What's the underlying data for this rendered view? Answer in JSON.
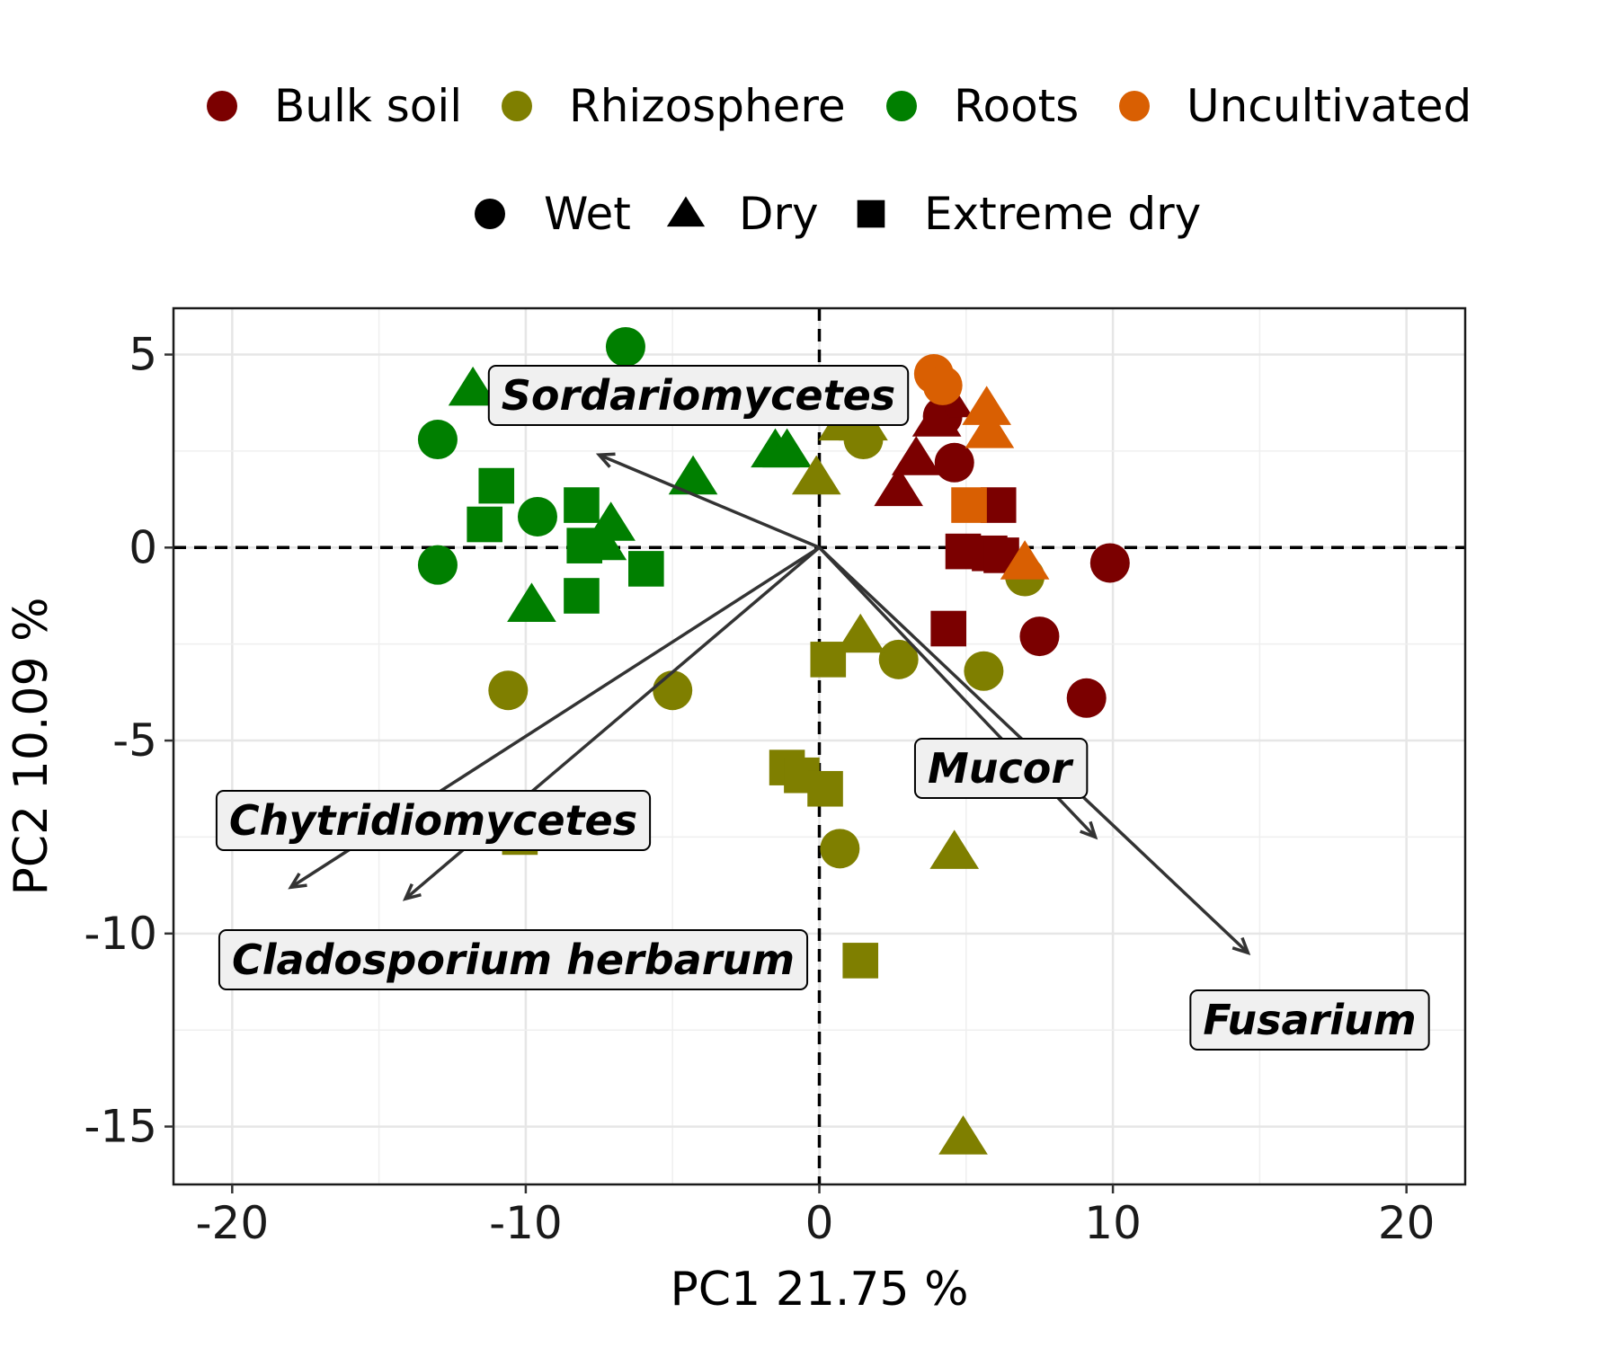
{
  "chart_data": {
    "type": "scatter",
    "xlabel": "PC1 21.75 %",
    "ylabel": "PC2 10.09 %",
    "xlim": [
      -22,
      22
    ],
    "ylim": [
      -16.5,
      6.2
    ],
    "xticks": [
      -20,
      -10,
      0,
      10,
      20
    ],
    "yticks": [
      5,
      0,
      -5,
      -10,
      -15
    ],
    "grid": true,
    "reference_lines": {
      "x": 0,
      "y": 0,
      "style": "dashed"
    },
    "legend": {
      "placement": "top",
      "groups": [
        {
          "name": "Bulk soil",
          "color": "#7b0000"
        },
        {
          "name": "Rhizosphere",
          "color": "#7f7f00"
        },
        {
          "name": "Roots",
          "color": "#007f00"
        },
        {
          "name": "Uncultivated",
          "color": "#d95f02"
        }
      ],
      "conditions": [
        {
          "name": "Wet",
          "shape": "circle"
        },
        {
          "name": "Dry",
          "shape": "triangle"
        },
        {
          "name": "Extreme dry",
          "shape": "square"
        }
      ]
    },
    "points": [
      {
        "group": "Roots",
        "condition": "Wet",
        "x": -6.6,
        "y": 5.2
      },
      {
        "group": "Roots",
        "condition": "Wet",
        "x": -13.0,
        "y": 2.8
      },
      {
        "group": "Roots",
        "condition": "Wet",
        "x": -9.6,
        "y": 0.8
      },
      {
        "group": "Roots",
        "condition": "Wet",
        "x": -13.0,
        "y": -0.45
      },
      {
        "group": "Roots",
        "condition": "Dry",
        "x": -11.8,
        "y": 4.1
      },
      {
        "group": "Roots",
        "condition": "Dry",
        "x": -4.9,
        "y": 3.7
      },
      {
        "group": "Roots",
        "condition": "Dry",
        "x": -4.3,
        "y": 1.8
      },
      {
        "group": "Roots",
        "condition": "Dry",
        "x": -1.5,
        "y": 2.5
      },
      {
        "group": "Roots",
        "condition": "Dry",
        "x": -1.1,
        "y": 2.5
      },
      {
        "group": "Roots",
        "condition": "Dry",
        "x": -7.1,
        "y": 0.6
      },
      {
        "group": "Roots",
        "condition": "Dry",
        "x": -7.4,
        "y": 0.1
      },
      {
        "group": "Roots",
        "condition": "Dry",
        "x": -9.8,
        "y": -1.5
      },
      {
        "group": "Roots",
        "condition": "Extreme dry",
        "x": -11.0,
        "y": 1.6
      },
      {
        "group": "Roots",
        "condition": "Extreme dry",
        "x": -11.4,
        "y": 0.6
      },
      {
        "group": "Roots",
        "condition": "Extreme dry",
        "x": -8.1,
        "y": 1.1
      },
      {
        "group": "Roots",
        "condition": "Extreme dry",
        "x": -8.0,
        "y": 0.05
      },
      {
        "group": "Roots",
        "condition": "Extreme dry",
        "x": -5.9,
        "y": -0.55
      },
      {
        "group": "Roots",
        "condition": "Extreme dry",
        "x": -8.1,
        "y": -1.25
      },
      {
        "group": "Rhizosphere",
        "condition": "Wet",
        "x": -10.6,
        "y": -3.7
      },
      {
        "group": "Rhizosphere",
        "condition": "Wet",
        "x": -5.0,
        "y": -3.7
      },
      {
        "group": "Rhizosphere",
        "condition": "Wet",
        "x": 1.5,
        "y": 2.8
      },
      {
        "group": "Rhizosphere",
        "condition": "Wet",
        "x": 2.7,
        "y": -2.9
      },
      {
        "group": "Rhizosphere",
        "condition": "Wet",
        "x": 5.6,
        "y": -3.2
      },
      {
        "group": "Rhizosphere",
        "condition": "Wet",
        "x": 7.0,
        "y": -0.75
      },
      {
        "group": "Rhizosphere",
        "condition": "Wet",
        "x": 0.7,
        "y": -7.8
      },
      {
        "group": "Rhizosphere",
        "condition": "Dry",
        "x": 0.8,
        "y": 3.2
      },
      {
        "group": "Rhizosphere",
        "condition": "Dry",
        "x": 1.5,
        "y": 3.2
      },
      {
        "group": "Rhizosphere",
        "condition": "Dry",
        "x": -0.1,
        "y": 1.8
      },
      {
        "group": "Rhizosphere",
        "condition": "Dry",
        "x": 1.4,
        "y": -2.3
      },
      {
        "group": "Rhizosphere",
        "condition": "Dry",
        "x": 4.6,
        "y": -7.9
      },
      {
        "group": "Rhizosphere",
        "condition": "Dry",
        "x": 4.9,
        "y": -15.3
      },
      {
        "group": "Rhizosphere",
        "condition": "Extreme dry",
        "x": 0.3,
        "y": -2.9
      },
      {
        "group": "Rhizosphere",
        "condition": "Extreme dry",
        "x": -1.1,
        "y": -5.7
      },
      {
        "group": "Rhizosphere",
        "condition": "Extreme dry",
        "x": -0.6,
        "y": -5.9
      },
      {
        "group": "Rhizosphere",
        "condition": "Extreme dry",
        "x": 0.2,
        "y": -6.25
      },
      {
        "group": "Rhizosphere",
        "condition": "Extreme dry",
        "x": -10.2,
        "y": -7.5
      },
      {
        "group": "Rhizosphere",
        "condition": "Extreme dry",
        "x": 1.4,
        "y": -10.7
      },
      {
        "group": "Bulk soil",
        "condition": "Wet",
        "x": 9.9,
        "y": -0.4
      },
      {
        "group": "Bulk soil",
        "condition": "Wet",
        "x": 7.5,
        "y": -2.3
      },
      {
        "group": "Bulk soil",
        "condition": "Wet",
        "x": 9.1,
        "y": -3.9
      },
      {
        "group": "Bulk soil",
        "condition": "Wet",
        "x": 4.6,
        "y": 2.2
      },
      {
        "group": "Bulk soil",
        "condition": "Wet",
        "x": 4.2,
        "y": 3.4
      },
      {
        "group": "Bulk soil",
        "condition": "Dry",
        "x": 4.4,
        "y": 3.8
      },
      {
        "group": "Bulk soil",
        "condition": "Dry",
        "x": 4.0,
        "y": 3.3
      },
      {
        "group": "Bulk soil",
        "condition": "Dry",
        "x": 3.3,
        "y": 2.3
      },
      {
        "group": "Bulk soil",
        "condition": "Dry",
        "x": 2.7,
        "y": 1.5
      },
      {
        "group": "Bulk soil",
        "condition": "Extreme dry",
        "x": 6.1,
        "y": 1.1
      },
      {
        "group": "Bulk soil",
        "condition": "Extreme dry",
        "x": 4.9,
        "y": -0.1
      },
      {
        "group": "Bulk soil",
        "condition": "Extreme dry",
        "x": 5.8,
        "y": -0.15
      },
      {
        "group": "Bulk soil",
        "condition": "Extreme dry",
        "x": 6.2,
        "y": -0.2
      },
      {
        "group": "Bulk soil",
        "condition": "Extreme dry",
        "x": 4.4,
        "y": -2.1
      },
      {
        "group": "Uncultivated",
        "condition": "Wet",
        "x": 3.9,
        "y": 4.5
      },
      {
        "group": "Uncultivated",
        "condition": "Wet",
        "x": 4.2,
        "y": 4.2
      },
      {
        "group": "Uncultivated",
        "condition": "Dry",
        "x": 5.7,
        "y": 3.6
      },
      {
        "group": "Uncultivated",
        "condition": "Dry",
        "x": 5.8,
        "y": 3.0
      },
      {
        "group": "Uncultivated",
        "condition": "Dry",
        "x": 7.0,
        "y": -0.4
      },
      {
        "group": "Uncultivated",
        "condition": "Extreme dry",
        "x": 5.1,
        "y": 1.1
      }
    ],
    "loadings": [
      {
        "name": "Sordariomycetes",
        "x": -7.5,
        "y": 2.4
      },
      {
        "name": "Chytridiomycetes",
        "x": -18.0,
        "y": -8.8
      },
      {
        "name": "Cladosporium herbarum",
        "x": -14.1,
        "y": -9.1
      },
      {
        "name": "Mucor",
        "x": 9.4,
        "y": -7.5
      },
      {
        "name": "Fusarium",
        "x": 14.6,
        "y": -10.5
      }
    ]
  }
}
